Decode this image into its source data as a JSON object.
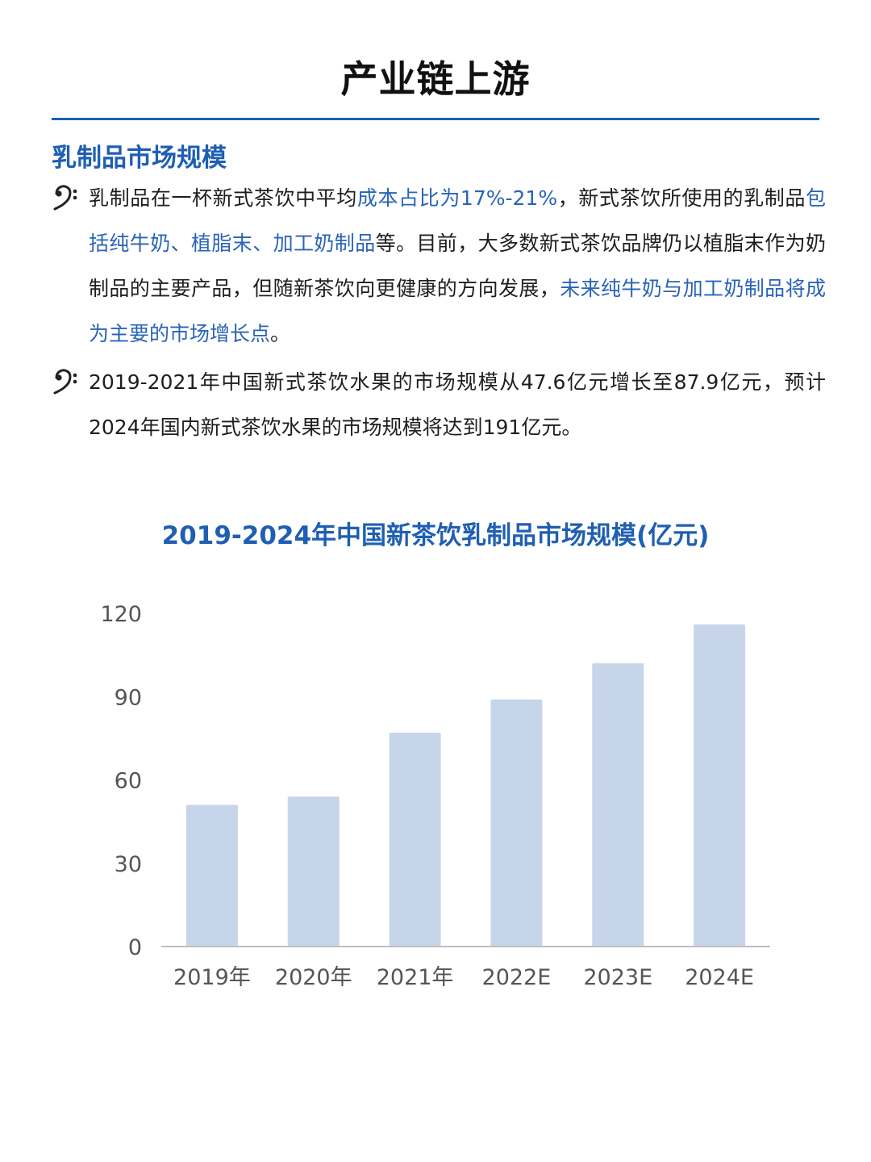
{
  "page": {
    "title": "产业链上游",
    "section_heading": "乳制品市场规模"
  },
  "bullets": [
    {
      "segments": [
        {
          "text": "乳制品在一杯新式茶饮中平均",
          "highlight": false
        },
        {
          "text": "成本占比为17%-21%",
          "highlight": true
        },
        {
          "text": "，新式茶饮所使用的乳制品",
          "highlight": false
        },
        {
          "text": "包括纯牛奶、植脂末、加工奶制品",
          "highlight": true
        },
        {
          "text": "等。目前，大多数新式茶饮品牌仍以植脂末作为奶制品的主要产品，但随新茶饮向更健康的方向发展，",
          "highlight": false
        },
        {
          "text": "未来纯牛奶与加工奶制品将成为主要的市场增长点",
          "highlight": true
        },
        {
          "text": "。",
          "highlight": false
        }
      ]
    },
    {
      "segments": [
        {
          "text": "2019-2021年中国新式茶饮水果的市场规模从47.6亿元增长至87.9亿元，预计2024年国内新式茶饮水果的市场规模将达到191亿元。",
          "highlight": false
        }
      ]
    }
  ],
  "colors": {
    "accent": "#1f5fb3",
    "highlight": "#2a63b8",
    "bar": "#c7d5ea",
    "axis_text": "#555555"
  },
  "chart_data": {
    "type": "bar",
    "title": "2019-2024年中国新茶饮乳制品市场规模(亿元)",
    "categories": [
      "2019年",
      "2020年",
      "2021年",
      "2022E",
      "2023E",
      "2024E"
    ],
    "values": [
      51,
      54,
      77,
      89,
      102,
      116
    ],
    "xlabel": "",
    "ylabel": "",
    "ylim": [
      0,
      120
    ],
    "yticks": [
      0,
      30,
      60,
      90,
      120
    ],
    "grid": false,
    "legend": "none"
  }
}
